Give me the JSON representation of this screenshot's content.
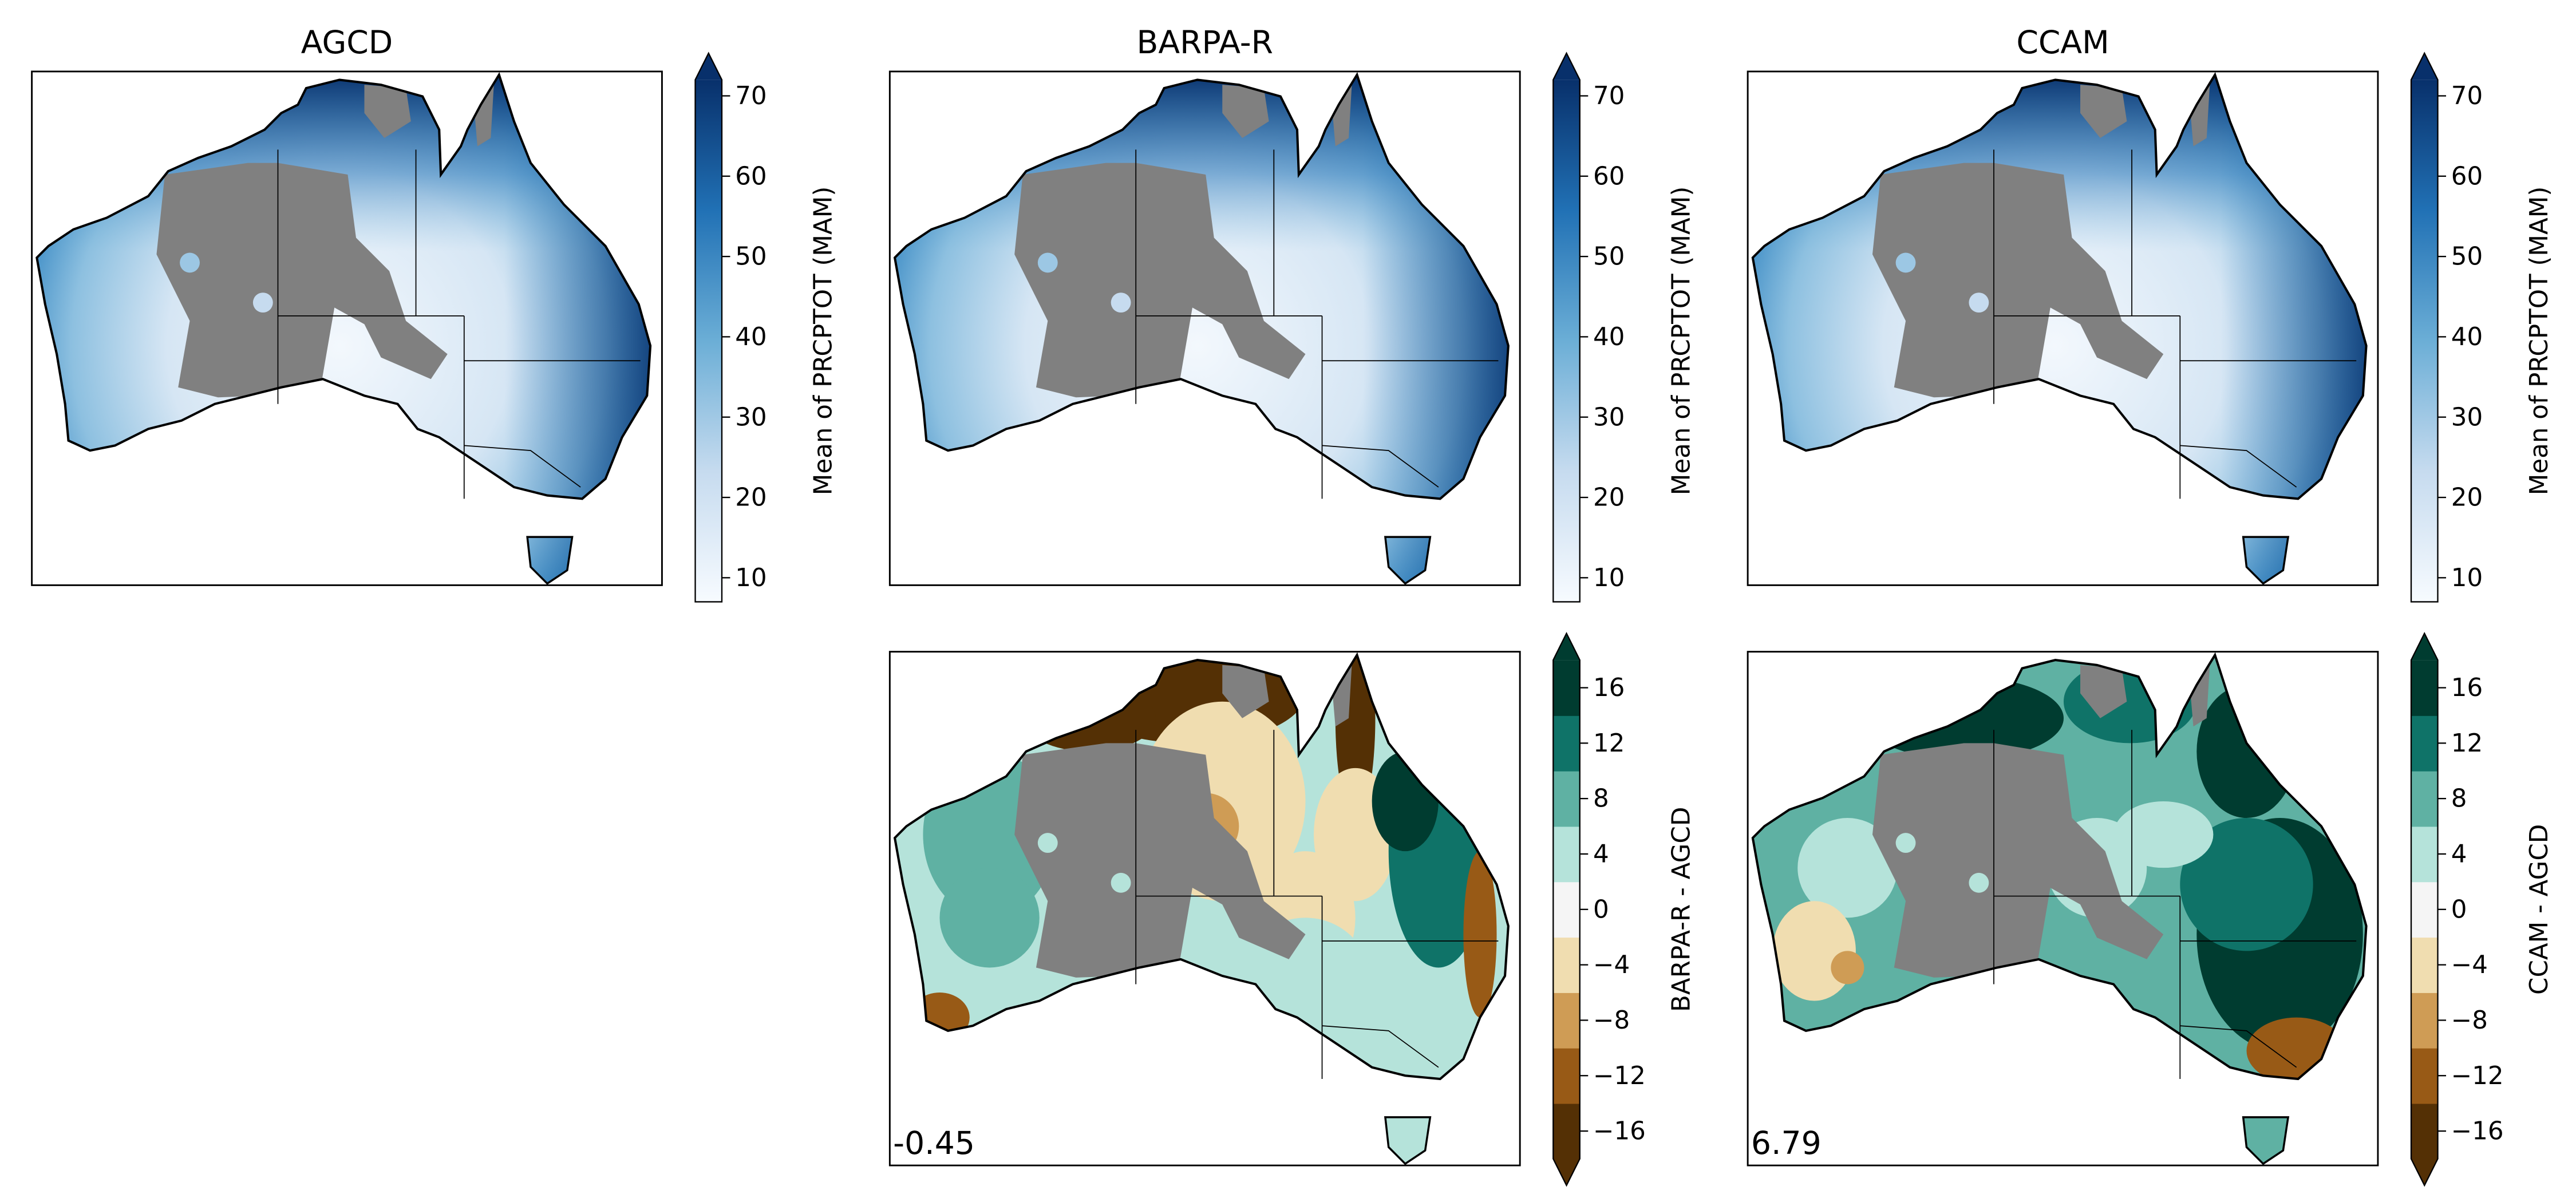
{
  "chart_data": {
    "type": "heatmap",
    "panels": [
      {
        "id": "agcd",
        "title": "AGCD",
        "row": 0,
        "col": 0,
        "kind": "mean",
        "colorbar_label": "Mean of PRCPTOT (MAM)",
        "annotation": null
      },
      {
        "id": "barpa",
        "title": "BARPA-R",
        "row": 0,
        "col": 1,
        "kind": "mean",
        "colorbar_label": "Mean of PRCPTOT (MAM)",
        "annotation": null
      },
      {
        "id": "ccam",
        "title": "CCAM",
        "row": 0,
        "col": 2,
        "kind": "mean",
        "colorbar_label": "Mean of PRCPTOT (MAM)",
        "annotation": null
      },
      {
        "id": "barpa-diff",
        "title": "",
        "row": 1,
        "col": 1,
        "kind": "diff",
        "colorbar_label": "BARPA-R - AGCD",
        "annotation": "-0.45"
      },
      {
        "id": "ccam-diff",
        "title": "",
        "row": 1,
        "col": 2,
        "kind": "diff",
        "colorbar_label": "CCAM - AGCD",
        "annotation": "6.79"
      }
    ],
    "mean_colorbar": {
      "range": [
        7,
        72
      ],
      "ticks": [
        10,
        20,
        30,
        40,
        50,
        60,
        70
      ],
      "tick_labels": [
        "10",
        "20",
        "30",
        "40",
        "50",
        "60",
        "70"
      ],
      "extend": "max",
      "colors": [
        "#f7fbff",
        "#c6dbef",
        "#6baed6",
        "#2171b5",
        "#08306b"
      ]
    },
    "diff_colorbar": {
      "levels": [
        -18,
        -14,
        -10,
        -6,
        -2,
        2,
        6,
        10,
        14,
        18
      ],
      "ticks": [
        -16,
        -12,
        -8,
        -4,
        0,
        4,
        8,
        12,
        16
      ],
      "tick_labels": [
        "−16",
        "−12",
        "−8",
        "−4",
        "0",
        "4",
        "8",
        "12",
        "16"
      ],
      "extend": "both",
      "colors": [
        "#543005",
        "#985a16",
        "#cf9c55",
        "#f0ddb0",
        "#f5f5f5",
        "#b5e3da",
        "#5fb1a3",
        "#0f7368",
        "#003c30"
      ]
    },
    "masked_color": "#808080"
  }
}
